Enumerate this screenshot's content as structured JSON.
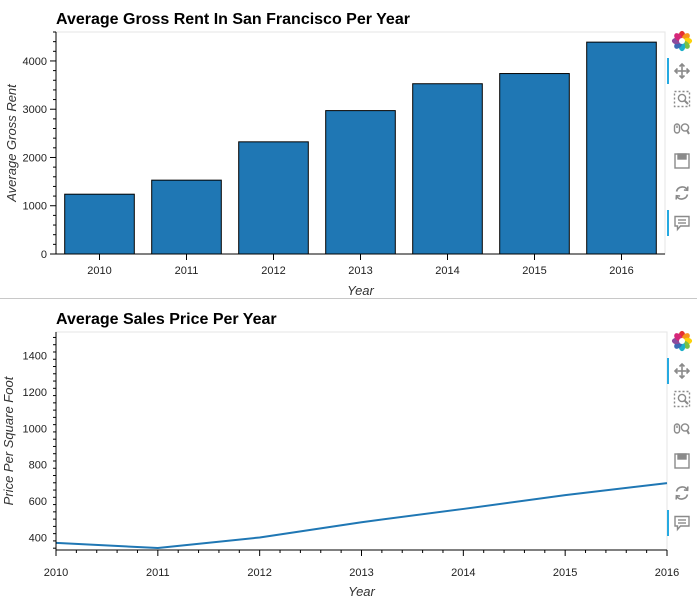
{
  "charts": [
    {
      "chart_data": {
        "type": "bar",
        "title": "Average Gross Rent In San Francisco Per Year",
        "xlabel": "Year",
        "ylabel": "Average Gross Rent",
        "categories": [
          "2010",
          "2011",
          "2012",
          "2013",
          "2014",
          "2015",
          "2016"
        ],
        "values": [
          1239,
          1530,
          2324,
          2971,
          3528,
          3739,
          4390
        ],
        "ylim": [
          0,
          4600
        ],
        "yticks": [
          "0",
          "1000",
          "2000",
          "3000",
          "4000"
        ],
        "bar_color": "#1f77b4",
        "grid": false
      }
    },
    {
      "chart_data": {
        "type": "line",
        "title": "Average Sales Price Per Year",
        "xlabel": "Year",
        "ylabel": "Price Per Square Foot",
        "x": [
          2010,
          2011,
          2012,
          2013,
          2014,
          2015,
          2016
        ],
        "values": [
          369,
          341,
          399,
          483,
          556,
          632,
          698
        ],
        "xlim": [
          2010,
          2016
        ],
        "ylim": [
          330,
          1530
        ],
        "xticks": [
          "2010",
          "2011",
          "2012",
          "2013",
          "2014",
          "2015",
          "2016"
        ],
        "yticks": [
          "400",
          "600",
          "800",
          "1000",
          "1200",
          "1400"
        ],
        "line_color": "#1f77b4",
        "grid": false
      }
    }
  ],
  "toolbar": {
    "tools": [
      "bokeh-logo-icon",
      "pan-icon",
      "box-zoom-icon",
      "wheel-zoom-icon",
      "save-icon",
      "reset-icon",
      "hover-icon"
    ]
  }
}
